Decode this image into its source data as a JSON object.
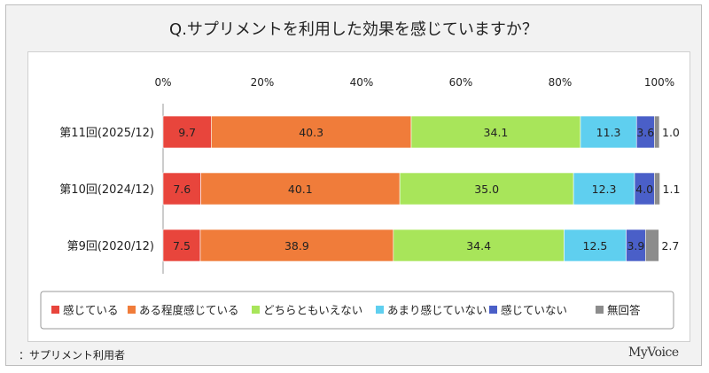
{
  "title": "Q.サプリメントを利用した効果を感じていますか？",
  "footnote": "：サプリメント利用者",
  "brand": "MyVoice",
  "chart_data": {
    "type": "bar",
    "orientation": "horizontal",
    "stacked": true,
    "percent_scale": true,
    "xlim": [
      0,
      100
    ],
    "xticks": [
      "0%",
      "20%",
      "40%",
      "60%",
      "80%",
      "100%"
    ],
    "categories": [
      "第11回(2025/12)",
      "第10回(2024/12)",
      "第9回(2020/12)"
    ],
    "series": [
      {
        "name": "感じている",
        "color": "#e8453c",
        "values": [
          9.7,
          7.6,
          7.5
        ]
      },
      {
        "name": "ある程度感じている",
        "color": "#f07c3a",
        "values": [
          40.3,
          40.1,
          38.9
        ]
      },
      {
        "name": "どちらともいえない",
        "color": "#a8e55a",
        "values": [
          34.1,
          35.0,
          34.4
        ]
      },
      {
        "name": "あまり感じていない",
        "color": "#5fcfef",
        "values": [
          11.3,
          12.3,
          12.5
        ]
      },
      {
        "name": "感じていない",
        "color": "#4a5fc8",
        "values": [
          3.6,
          4.0,
          3.9
        ]
      },
      {
        "name": "無回答",
        "color": "#8c8c8c",
        "values": [
          1.0,
          1.1,
          2.7
        ]
      }
    ],
    "data_labels": [
      [
        "9.7",
        "40.3",
        "34.1",
        "11.3",
        "3.6",
        "1.0"
      ],
      [
        "7.6",
        "40.1",
        "35.0",
        "12.3",
        "4.0",
        "1.1"
      ],
      [
        "7.5",
        "38.9",
        "34.4",
        "12.5",
        "3.9",
        "2.7"
      ]
    ],
    "legend_position": "bottom",
    "grid": false
  }
}
